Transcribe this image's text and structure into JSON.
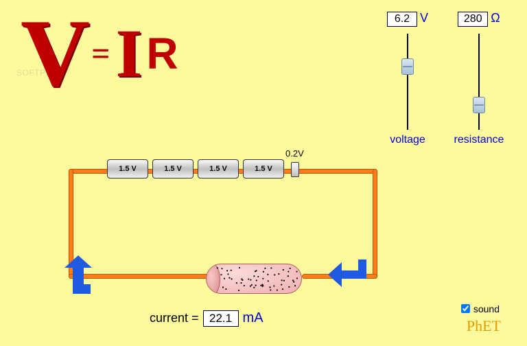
{
  "background_color": "#fdfa9e",
  "formula": {
    "v": "V",
    "eq": "=",
    "i": "I",
    "r": "R",
    "color": "#c00000",
    "v_fontsize": 140,
    "i_fontsize": 100,
    "r_fontsize": 64,
    "eq_fontsize": 48
  },
  "controls": {
    "voltage": {
      "value": "6.2",
      "unit": "V",
      "label": "voltage",
      "slider": {
        "min": 0,
        "max": 10,
        "position_pct": 26,
        "track_color": "#000000",
        "thumb_color": "#b8ceda"
      }
    },
    "resistance": {
      "value": "280",
      "unit": "Ω",
      "label": "resistance",
      "slider": {
        "min": 0,
        "max": 1000,
        "position_pct": 66,
        "track_color": "#000000",
        "thumb_color": "#b8ceda"
      }
    },
    "unit_color": "#0000d0",
    "label_color": "#0000d0"
  },
  "circuit": {
    "wire_color": "#ff7d1a",
    "wire_border": "#c05500",
    "batteries": {
      "count": 4,
      "label": "1.5 V",
      "partial_label": "0.2V"
    },
    "resistor": {
      "fill": "#efafaf",
      "dot_count": 60,
      "dot_color": "#000000"
    },
    "arrows": {
      "color": "#1e5be0"
    }
  },
  "current": {
    "label": "current =",
    "value": "22.1",
    "unit": "mA",
    "unit_color": "#0000d0"
  },
  "sound": {
    "label": "sound",
    "checked": true
  },
  "brand": "PhET",
  "watermark": "SOFTPEDIA"
}
